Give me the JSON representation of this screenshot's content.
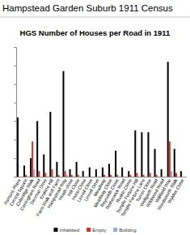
{
  "chart_data": {
    "type": "bar",
    "annotations": [
      "Hampstead Garden Suburb 1911 Census"
    ],
    "title": "HGS Number of Houses per Road in 1911",
    "categories": [
      "Asmuns Place",
      "Central Square",
      "Coleridge Walk",
      "Corringham Road",
      "Denman Drive",
      "Erskine Hill",
      "Farm Walk and Farm",
      "Hampstead Way",
      "Heath close",
      "Hill Close",
      "Horst Close",
      "Linnell Close",
      "Linnell Drive",
      "Meadway",
      "Meadway Close",
      "Reynolds Close",
      "Rotherwick Road",
      "Ruskin Close",
      "Temple Fortune Hill",
      "Temple Fortune Lane",
      "Turner Close",
      "Wellgarth Road",
      "Wildwood Road",
      "Willifield Way",
      "Wordsworth Walk",
      "Wyldes Close"
    ],
    "series": [
      {
        "name": "Inhabited",
        "color": "#000000",
        "values": [
          32,
          6,
          10,
          30,
          12,
          35,
          8,
          57,
          4,
          8,
          3,
          5,
          4,
          5,
          7,
          14,
          5,
          3,
          25,
          24,
          24,
          15,
          4,
          62,
          15,
          3
        ]
      },
      {
        "name": "Empty",
        "color": "#e0281e",
        "values": [
          0,
          1,
          19,
          3,
          2,
          4,
          1,
          3,
          1,
          1,
          0,
          0,
          0,
          1,
          1,
          1,
          0,
          1,
          2,
          1,
          2,
          1,
          0,
          19,
          2,
          0
        ]
      },
      {
        "name": "Building",
        "color": "#8faadc",
        "values": [
          0,
          0,
          4,
          0,
          0,
          0,
          0,
          1,
          0,
          0,
          0,
          0,
          0,
          0,
          0,
          0,
          0,
          0,
          0,
          0,
          0,
          0,
          0,
          3,
          0,
          0
        ]
      }
    ],
    "ylim": [
      0,
      70
    ],
    "yticks": [
      0,
      10,
      20,
      30,
      40,
      50,
      60,
      70
    ],
    "grid": false,
    "legend": "bottom",
    "tick_labels": "x"
  }
}
